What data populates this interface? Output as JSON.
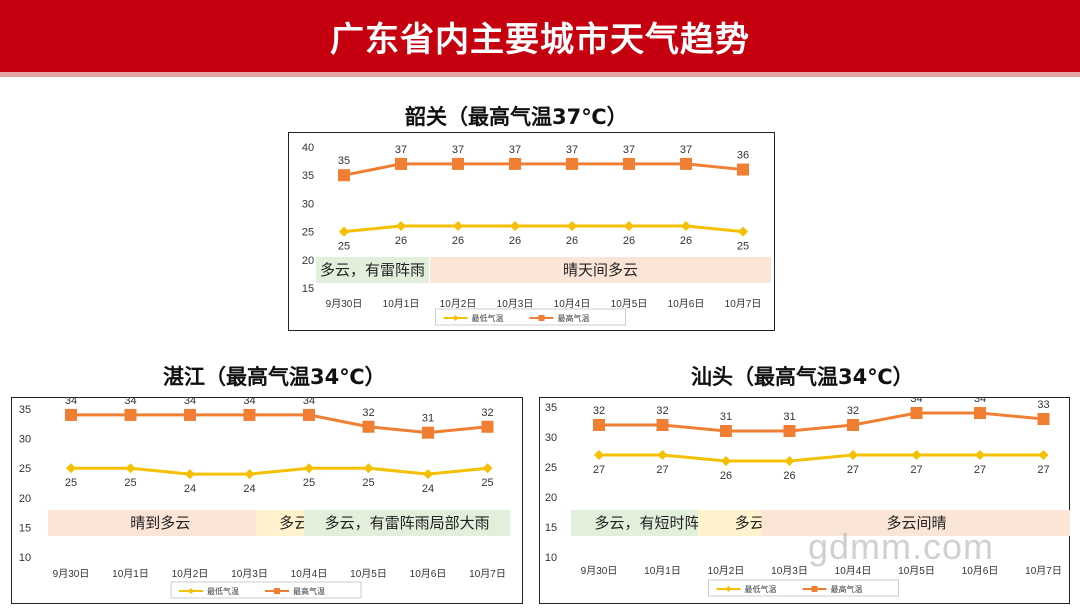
{
  "page_title": "广东省内主要城市天气趋势",
  "watermark": "gdmm.com",
  "chart_data": [
    {
      "type": "line",
      "title": "韶关（最高气温37℃）",
      "categories": [
        "9月30日",
        "10月1日",
        "10月2日",
        "10月3日",
        "10月4日",
        "10月5日",
        "10月6日",
        "10月7日"
      ],
      "series": [
        {
          "name": "最低气温",
          "values": [
            25,
            26,
            26,
            26,
            26,
            26,
            26,
            25
          ],
          "color": "#f5c000"
        },
        {
          "name": "最高气温",
          "values": [
            35,
            37,
            37,
            37,
            37,
            37,
            37,
            36
          ],
          "color": "#f07f34"
        }
      ],
      "ylim": [
        15,
        40
      ],
      "yticks": [
        15,
        20,
        25,
        30,
        35,
        40
      ],
      "weather": [
        {
          "label": "多云，有雷阵雨",
          "from": 0,
          "to": 1,
          "color": "#e2efda"
        },
        {
          "label": "晴天间多云",
          "from": 2,
          "to": 7,
          "color": "#fbe5d6"
        }
      ]
    },
    {
      "type": "line",
      "title": "湛江（最高气温34℃）",
      "categories": [
        "9月30日",
        "10月1日",
        "10月2日",
        "10月3日",
        "10月4日",
        "10月5日",
        "10月6日",
        "10月7日"
      ],
      "series": [
        {
          "name": "最低气温",
          "values": [
            25,
            25,
            24,
            24,
            25,
            25,
            24,
            25
          ],
          "color": "#f5c000"
        },
        {
          "name": "最高气温",
          "values": [
            34,
            34,
            34,
            34,
            34,
            32,
            31,
            32
          ],
          "color": "#f07f34"
        }
      ],
      "ylim": [
        10,
        35
      ],
      "yticks": [
        10,
        15,
        20,
        25,
        30,
        35
      ],
      "weather": [
        {
          "label": "晴到多云",
          "from": 0,
          "to": 3,
          "color": "#fbe5d6"
        },
        {
          "label": "多云",
          "from": 3.5,
          "to": 4,
          "color": "#fff2cc"
        },
        {
          "label": "多云，有雷阵雨局部大雨",
          "from": 4.3,
          "to": 7,
          "color": "#e2efda"
        }
      ]
    },
    {
      "type": "line",
      "title": "汕头（最高气温34℃）",
      "categories": [
        "9月30日",
        "10月1日",
        "10月2日",
        "10月3日",
        "10月4日",
        "10月5日",
        "10月6日",
        "10月7日"
      ],
      "series": [
        {
          "name": "最低气温",
          "values": [
            27,
            27,
            26,
            26,
            27,
            27,
            27,
            27
          ],
          "color": "#f5c000"
        },
        {
          "name": "最高气温",
          "values": [
            32,
            32,
            31,
            31,
            32,
            34,
            34,
            33
          ],
          "color": "#f07f34"
        }
      ],
      "ylim": [
        10,
        35
      ],
      "yticks": [
        10,
        15,
        20,
        25,
        30,
        35
      ],
      "weather": [
        {
          "label": "多云，有短时阵雨",
          "from": 0,
          "to": 1.75,
          "color": "#e2efda"
        },
        {
          "label": "多云",
          "from": 2,
          "to": 2.75,
          "color": "#fff2cc"
        },
        {
          "label": "多云间晴",
          "from": 3,
          "to": 7,
          "color": "#fbe5d6"
        }
      ]
    }
  ]
}
